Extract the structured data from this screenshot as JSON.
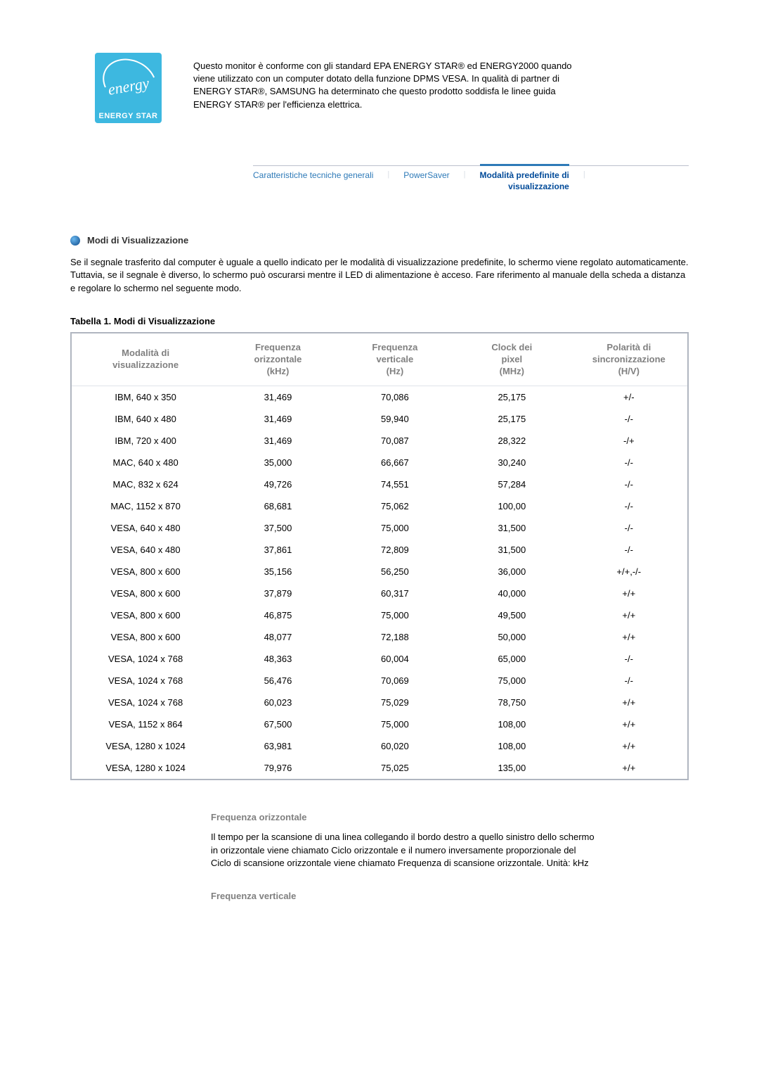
{
  "logo": {
    "word": "energy",
    "band": "ENERGY STAR"
  },
  "intro": "Questo monitor è conforme con gli standard EPA ENERGY STAR® ed ENERGY2000 quando viene utilizzato con un computer dotato della funzione DPMS VESA. In qualità di partner di ENERGY STAR®, SAMSUNG ha determinato che questo prodotto soddisfa le linee guida ENERGY STAR® per l'efficienza elettrica.",
  "tabs": {
    "t1": "Caratteristiche tecniche generali",
    "t2": "PowerSaver",
    "t3_line1": "Modalità predefinite di",
    "t3_line2": "visualizzazione"
  },
  "section": {
    "heading": "Modi di Visualizzazione",
    "body": "Se il segnale trasferito dal computer è uguale a quello indicato per le modalità di visualizzazione predefinite, lo schermo viene regolato automaticamente. Tuttavia, se il segnale è diverso, lo schermo può oscurarsi mentre il LED di alimentazione è acceso. Fare riferimento al manuale della scheda a distanza e regolare lo schermo nel seguente modo.",
    "table_caption": "Tabella 1. Modi di Visualizzazione"
  },
  "table": {
    "headers": {
      "mode_l1": "Modalità di",
      "mode_l2": "visualizzazione",
      "hfreq_l1": "Frequenza",
      "hfreq_l2": "orizzontale",
      "hfreq_l3": "(kHz)",
      "vfreq_l1": "Frequenza",
      "vfreq_l2": "verticale",
      "vfreq_l3": "(Hz)",
      "clock_l1": "Clock dei",
      "clock_l2": "pixel",
      "clock_l3": "(MHz)",
      "pol_l1": "Polarità di",
      "pol_l2": "sincronizzazione",
      "pol_l3": "(H/V)"
    },
    "rows": [
      {
        "m": "IBM, 640 x 350",
        "h": "31,469",
        "v": "70,086",
        "c": "25,175",
        "p": "+/-"
      },
      {
        "m": "IBM, 640 x 480",
        "h": "31,469",
        "v": "59,940",
        "c": "25,175",
        "p": "-/-"
      },
      {
        "m": "IBM, 720 x 400",
        "h": "31,469",
        "v": "70,087",
        "c": "28,322",
        "p": "-/+"
      },
      {
        "m": "MAC, 640 x 480",
        "h": "35,000",
        "v": "66,667",
        "c": "30,240",
        "p": "-/-"
      },
      {
        "m": "MAC, 832 x 624",
        "h": "49,726",
        "v": "74,551",
        "c": "57,284",
        "p": "-/-"
      },
      {
        "m": "MAC, 1152 x 870",
        "h": "68,681",
        "v": "75,062",
        "c": "100,00",
        "p": "-/-"
      },
      {
        "m": "VESA, 640 x 480",
        "h": "37,500",
        "v": "75,000",
        "c": "31,500",
        "p": "-/-"
      },
      {
        "m": "VESA, 640 x 480",
        "h": "37,861",
        "v": "72,809",
        "c": "31,500",
        "p": "-/-"
      },
      {
        "m": "VESA, 800 x 600",
        "h": "35,156",
        "v": "56,250",
        "c": "36,000",
        "p": "+/+,-/-"
      },
      {
        "m": "VESA, 800 x 600",
        "h": "37,879",
        "v": "60,317",
        "c": "40,000",
        "p": "+/+"
      },
      {
        "m": "VESA, 800 x 600",
        "h": "46,875",
        "v": "75,000",
        "c": "49,500",
        "p": "+/+"
      },
      {
        "m": "VESA, 800 x 600",
        "h": "48,077",
        "v": "72,188",
        "c": "50,000",
        "p": "+/+"
      },
      {
        "m": "VESA, 1024 x 768",
        "h": "48,363",
        "v": "60,004",
        "c": "65,000",
        "p": "-/-"
      },
      {
        "m": "VESA, 1024 x 768",
        "h": "56,476",
        "v": "70,069",
        "c": "75,000",
        "p": "-/-"
      },
      {
        "m": "VESA, 1024 x 768",
        "h": "60,023",
        "v": "75,029",
        "c": "78,750",
        "p": "+/+"
      },
      {
        "m": "VESA, 1152 x 864",
        "h": "67,500",
        "v": "75,000",
        "c": "108,00",
        "p": "+/+"
      },
      {
        "m": "VESA, 1280 x 1024",
        "h": "63,981",
        "v": "60,020",
        "c": "108,00",
        "p": "+/+"
      },
      {
        "m": "VESA, 1280 x 1024",
        "h": "79,976",
        "v": "75,025",
        "c": "135,00",
        "p": "+/+"
      }
    ]
  },
  "defs": {
    "hfreq_title": "Frequenza orizzontale",
    "hfreq_body": "Il tempo per la scansione di una linea collegando il bordo destro a quello sinistro dello schermo in orizzontale viene chiamato Ciclo orizzontale e il numero inversamente proporzionale del Ciclo di scansione orizzontale viene chiamato Frequenza di scansione orizzontale. Unità: kHz",
    "vfreq_title": "Frequenza verticale"
  },
  "style": {
    "colors": {
      "accent": "#2e7ab8",
      "header_grey": "#808080",
      "border_grey": "#b0b6c0",
      "logo_bg": "#3db8e0"
    }
  }
}
